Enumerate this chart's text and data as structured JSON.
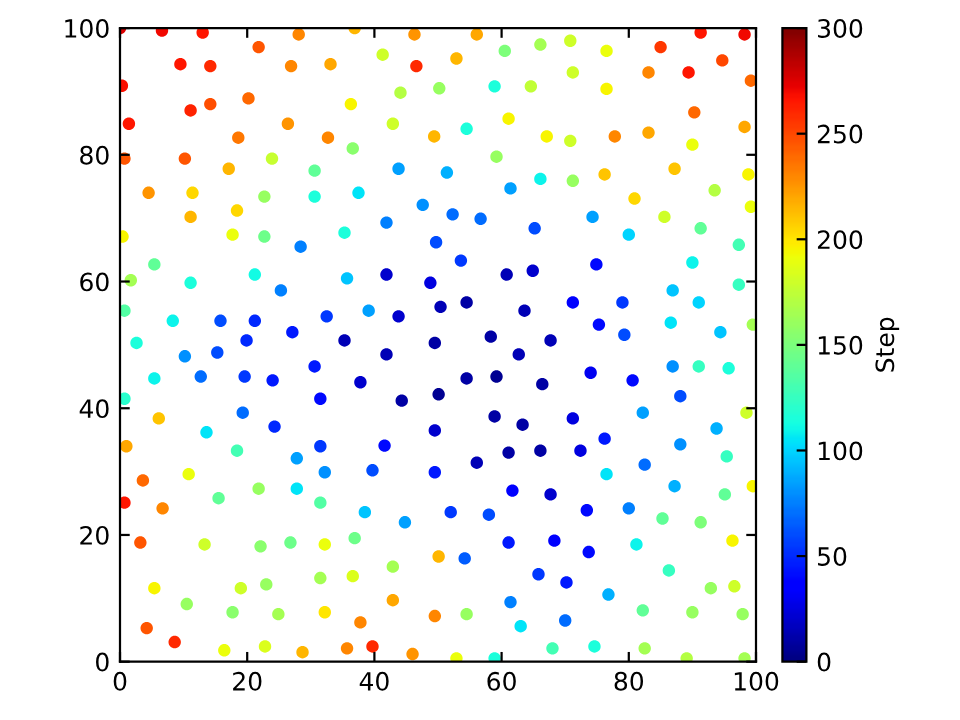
{
  "chart_data": {
    "type": "scatter",
    "clabel": "Step",
    "clim": [
      0,
      300
    ],
    "cticks": [
      0,
      50,
      100,
      150,
      200,
      250,
      300
    ],
    "marker": "circle",
    "xlim": [
      0,
      100
    ],
    "ylim": [
      0,
      100
    ],
    "xticks": [
      0,
      20,
      40,
      60,
      80,
      100
    ],
    "yticks": [
      0,
      20,
      40,
      60,
      80,
      100
    ],
    "grid": false,
    "x": [
      0,
      6.6,
      13,
      36.9,
      46.3,
      28.1,
      21.8,
      9.5,
      14.2,
      26.9,
      33.1,
      41.3,
      46.6,
      50.2,
      0.3,
      1.4,
      11.1,
      14.2,
      20.2,
      26.4,
      36.3,
      44.1,
      42.9,
      49.4,
      18.6,
      32.7,
      36.6,
      0.7,
      10.2,
      23.9,
      17.1,
      30.6,
      43.8,
      4.5,
      11.4,
      22.7,
      30.6,
      37.5,
      47.6,
      11.1,
      18.4,
      0.4,
      17.7,
      22.7,
      28.4,
      35.3,
      41.9,
      49.7,
      5.4,
      1.7,
      11.1,
      21.2,
      25.3,
      35.7,
      41.9,
      48.8,
      0.7,
      8.3,
      15.8,
      21.2,
      27.1,
      32.5,
      39.1,
      43.8,
      50.4,
      2.6,
      19.9,
      35.3,
      15.3,
      10.2,
      30.6,
      41.9,
      5.4,
      12.7,
      19.6,
      24,
      37.8,
      31.5,
      44.3,
      50.1,
      0.7,
      6.1,
      19.3,
      24.3,
      13.6,
      49.5,
      1.0,
      18.4,
      31.5,
      41.6,
      27.8,
      3.6,
      10.8,
      32.2,
      39.7,
      49.5,
      0.7,
      6.7,
      15.5,
      21.8,
      27.8,
      31.5,
      38.5,
      44.8,
      3.2,
      13.3,
      22.1,
      26.8,
      32.2,
      36.9,
      50.1,
      42.9,
      5.4,
      19,
      23,
      31.5,
      36.6,
      10.5,
      17.7,
      24.9,
      32.2,
      42.9,
      37.8,
      49.5,
      4.2,
      8.6,
      16.4,
      22.8,
      28.7,
      35.7,
      39.7,
      46,
      56.1,
      60.5,
      66.1,
      70.8,
      76.5,
      85,
      91.3,
      98.2,
      52.9,
      94.7,
      89.4,
      83.1,
      71.2,
      58.9,
      64.6,
      76.5,
      99.2,
      61.1,
      54.5,
      90.3,
      67.1,
      70.8,
      77.8,
      83.1,
      90,
      98.2,
      59.2,
      51.4,
      61.4,
      66.1,
      71.2,
      76.2,
      87.2,
      98.8,
      80.9,
      93.5,
      99.2,
      52.3,
      56.7,
      74.3,
      85.6,
      65.2,
      80,
      91.3,
      97.3,
      53.6,
      60.8,
      64.9,
      74.9,
      90,
      86.9,
      97.3,
      91,
      54.5,
      63.6,
      71.2,
      79,
      75.3,
      79.3,
      86.6,
      94.4,
      99.5,
      58.3,
      67.7,
      49.5,
      62.7,
      54.5,
      59.2,
      66.4,
      74,
      80.6,
      86.9,
      91,
      95.7,
      88.1,
      82.2,
      98.5,
      58.9,
      63.3,
      71.2,
      76.2,
      93.8,
      88.1,
      95.4,
      56.1,
      61.1,
      66.1,
      72.4,
      82.5,
      76.5,
      87.2,
      95.1,
      99.5,
      61.7,
      67.7,
      52,
      58,
      73.4,
      80,
      85.3,
      91.3,
      54.2,
      61.1,
      68.3,
      73.7,
      81.2,
      96.3,
      65.8,
      70.2,
      86.3,
      92.9,
      96.6,
      76.8,
      54.5,
      61.4,
      70,
      63,
      82.2,
      90,
      97.9,
      68,
      74.6,
      82.5,
      52.9,
      58.9,
      89.1,
      98.2
    ],
    "values": [
      100,
      99.6,
      99.3,
      100,
      99,
      99,
      97,
      94.3,
      94,
      94,
      94.3,
      95.8,
      94,
      90.5,
      90.9,
      84.9,
      87,
      88,
      88.9,
      84.9,
      88,
      89.8,
      84.9,
      82.9,
      82.7,
      82.7,
      81,
      79.4,
      79.4,
      79.4,
      77.8,
      77.5,
      77.8,
      74,
      74,
      73.4,
      73.4,
      74,
      72.1,
      70.2,
      71.2,
      67.1,
      67.4,
      67.1,
      65.5,
      67.7,
      69.3,
      66.2,
      62.7,
      60.2,
      59.8,
      61.1,
      58.6,
      60.5,
      61.1,
      59.8,
      55.4,
      53.8,
      53.8,
      53.8,
      52,
      54.5,
      55.4,
      54.5,
      56,
      50.3,
      50.7,
      50.7,
      48.8,
      48.2,
      46.6,
      48.5,
      44.7,
      45,
      45,
      44.4,
      44.1,
      41.5,
      41.2,
      42.2,
      41.5,
      38.4,
      39.3,
      37.1,
      36.2,
      36.5,
      34,
      33.3,
      34,
      34.1,
      32.1,
      28.6,
      29.6,
      29.9,
      30.2,
      29.9,
      25.1,
      24.2,
      25.8,
      27.3,
      27.3,
      25.1,
      23.6,
      22,
      18.8,
      18.5,
      18.2,
      18.8,
      18.5,
      19.5,
      16.6,
      15,
      11.6,
      11.6,
      12.2,
      13.2,
      13.5,
      9.1,
      7.8,
      7.5,
      7.8,
      9.7,
      6.2,
      7.2,
      5.3,
      3.1,
      1.8,
      2.4,
      1.5,
      2.1,
      2.4,
      1.2,
      99,
      96.4,
      97.4,
      98,
      96.4,
      97,
      99.3,
      99,
      95.2,
      94.9,
      93,
      93,
      93,
      90.8,
      90.8,
      90.4,
      91.7,
      85.7,
      84.1,
      86.7,
      82.9,
      82.2,
      82.9,
      83.5,
      81.6,
      84.4,
      79.7,
      77.2,
      74.7,
      76.2,
      75.9,
      76.9,
      77.8,
      76.9,
      73.1,
      74.4,
      71.8,
      70.6,
      69.9,
      70.2,
      70.2,
      68.4,
      67.4,
      68.4,
      65.8,
      63.3,
      61.1,
      61.7,
      62.7,
      63,
      58.6,
      59.5,
      56.7,
      56.7,
      55.4,
      56.7,
      56.7,
      53.2,
      51.6,
      53.5,
      52,
      53.2,
      51.3,
      50.7,
      50.3,
      48.5,
      44.7,
      45,
      43.8,
      45.6,
      44.4,
      46.6,
      46.6,
      46.3,
      41.9,
      39.3,
      39.3,
      38.7,
      37.4,
      38.4,
      35.2,
      36.8,
      34.3,
      32.4,
      31.4,
      33,
      33.3,
      33.3,
      31.1,
      29.6,
      27.7,
      26.4,
      27.7,
      27,
      26.4,
      23.6,
      23.2,
      23.9,
      24.2,
      22.6,
      22,
      16.3,
      18.8,
      19.1,
      17.3,
      18.5,
      19.1,
      13.8,
      12.5,
      14.4,
      11.6,
      11.9,
      10.6,
      7.5,
      9.4,
      6.5,
      5.6,
      8.1,
      7.8,
      7.5,
      2.1,
      2.4,
      2.1,
      0.5,
      0.5,
      0.5,
      0.5
    ],
    "cvalues": [
      275,
      270,
      265,
      215,
      225,
      230,
      245,
      265,
      260,
      230,
      220,
      180,
      260,
      160,
      268,
      265,
      262,
      248,
      240,
      225,
      195,
      170,
      180,
      215,
      235,
      230,
      155,
      245,
      245,
      178,
      215,
      140,
      85,
      225,
      205,
      160,
      115,
      105,
      80,
      215,
      205,
      195,
      190,
      145,
      75,
      115,
      75,
      60,
      140,
      165,
      115,
      112,
      75,
      95,
      20,
      25,
      135,
      110,
      60,
      50,
      45,
      55,
      85,
      20,
      15,
      115,
      50,
      15,
      60,
      80,
      45,
      15,
      110,
      70,
      55,
      45,
      20,
      40,
      10,
      5,
      120,
      210,
      70,
      50,
      105,
      20,
      220,
      130,
      55,
      40,
      85,
      240,
      190,
      80,
      60,
      45,
      265,
      230,
      140,
      160,
      105,
      135,
      95,
      85,
      245,
      180,
      155,
      145,
      190,
      145,
      215,
      165,
      195,
      180,
      160,
      165,
      185,
      160,
      155,
      165,
      200,
      220,
      230,
      230,
      245,
      260,
      190,
      185,
      215,
      230,
      260,
      225,
      220,
      150,
      165,
      180,
      190,
      255,
      265,
      270,
      215,
      250,
      265,
      230,
      180,
      115,
      175,
      195,
      240,
      195,
      115,
      240,
      195,
      180,
      230,
      220,
      190,
      220,
      160,
      90,
      85,
      110,
      160,
      210,
      210,
      195,
      205,
      170,
      190,
      70,
      70,
      85,
      180,
      60,
      100,
      140,
      130,
      55,
      15,
      20,
      40,
      110,
      95,
      125,
      100,
      10,
      15,
      35,
      55,
      40,
      60,
      105,
      95,
      165,
      10,
      15,
      10,
      15,
      10,
      5,
      10,
      30,
      40,
      80,
      125,
      115,
      60,
      85,
      180,
      10,
      10,
      25,
      45,
      90,
      80,
      125,
      15,
      10,
      10,
      25,
      70,
      105,
      90,
      140,
      195,
      35,
      20,
      55,
      60,
      40,
      75,
      140,
      150,
      65,
      45,
      35,
      40,
      110,
      195,
      55,
      45,
      125,
      160,
      180,
      90,
      160,
      75,
      70,
      105,
      140,
      160,
      160,
      130,
      115,
      165,
      190,
      115,
      170,
      165
    ]
  }
}
